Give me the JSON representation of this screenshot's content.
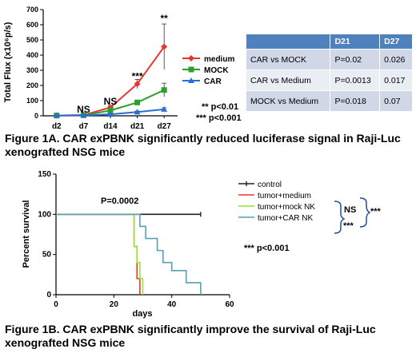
{
  "chart_data": [
    {
      "type": "line",
      "title": "",
      "ylabel": "Total Flux (x10⁶p/s)",
      "xlabel": "",
      "categories": [
        "d2",
        "d7",
        "d14",
        "d21",
        "d27"
      ],
      "ylim": [
        0,
        700
      ],
      "yticks": [
        0,
        100,
        200,
        300,
        400,
        500,
        600,
        700
      ],
      "grid": false,
      "legend_position": "right",
      "series": [
        {
          "name": "medium",
          "color": "#e8352e",
          "marker": "diamond",
          "values": [
            2,
            5,
            55,
            210,
            455
          ],
          "errors": [
            2,
            4,
            12,
            30,
            150
          ]
        },
        {
          "name": "MOCK",
          "color": "#2ca02c",
          "marker": "square",
          "values": [
            2,
            4,
            35,
            88,
            170
          ],
          "errors": [
            2,
            3,
            10,
            15,
            45
          ]
        },
        {
          "name": "CAR",
          "color": "#2a6fd6",
          "marker": "triangle",
          "values": [
            1,
            3,
            10,
            25,
            43
          ],
          "errors": [
            1,
            2,
            3,
            6,
            10
          ]
        }
      ],
      "annotations": [
        {
          "text": "NS",
          "x": "d7",
          "y": 20
        },
        {
          "text": "NS",
          "x": "d14",
          "y": 75
        },
        {
          "text": "***",
          "x": "d21",
          "y": 240
        },
        {
          "text": "**",
          "x": "d27",
          "y": 620
        }
      ],
      "notes": [
        "** p<0.01",
        "*** p<0.001"
      ]
    },
    {
      "type": "line",
      "title": "",
      "ylabel": "Percent survival",
      "xlabel": "days",
      "xlim": [
        0,
        60
      ],
      "xticks": [
        0,
        20,
        40,
        60
      ],
      "ylim": [
        0,
        150
      ],
      "yticks": [
        0,
        50,
        100,
        150
      ],
      "grid": false,
      "legend_position": "right",
      "series": [
        {
          "name": "control",
          "color": "#222222",
          "x": [
            0,
            50
          ],
          "y": [
            100,
            100
          ]
        },
        {
          "name": "tumor+medium",
          "color": "#e8352e",
          "x": [
            0,
            27,
            27,
            28,
            28,
            29,
            29
          ],
          "y": [
            100,
            100,
            60,
            60,
            20,
            20,
            0
          ]
        },
        {
          "name": "tumor+mock NK",
          "color": "#9be136",
          "x": [
            0,
            27,
            27,
            28,
            28,
            29,
            29,
            30,
            30
          ],
          "y": [
            100,
            100,
            60,
            60,
            40,
            40,
            20,
            20,
            0
          ]
        },
        {
          "name": "tumor+CAR NK",
          "color": "#5a9fb8",
          "x": [
            0,
            29,
            29,
            31,
            31,
            35,
            35,
            37,
            37,
            40,
            40,
            45,
            45,
            50,
            50
          ],
          "y": [
            100,
            100,
            85,
            85,
            70,
            70,
            55,
            55,
            40,
            40,
            30,
            30,
            15,
            15,
            0
          ]
        }
      ],
      "annotations": [
        {
          "text": "P=0.0002"
        }
      ],
      "comparisons": [
        {
          "label": "NS"
        },
        {
          "label": "***"
        },
        {
          "label": "***"
        }
      ],
      "notes": [
        "*** p<0.001"
      ]
    }
  ],
  "table": {
    "headers": [
      "",
      "D21",
      "D27"
    ],
    "rows": [
      [
        "CAR vs MOCK",
        "P=0.02",
        "0.026"
      ],
      [
        "CAR vs Medium",
        "P=0.0013",
        "0.017"
      ],
      [
        "MOCK vs Medium",
        "P=0.018",
        "0.07"
      ]
    ]
  },
  "captions": {
    "fig1a": "Figure 1A. CAR exPBNK significantly reduced luciferase signal in Raji-Luc xenografted NSG mice",
    "fig1b": "Figure 1B. CAR exPBNK significantly improve the survival of Raji-Luc xenografted NSG mice"
  },
  "colors": {
    "table_header": "#4f81bd",
    "table_row_dark": "#d0d8e8",
    "table_row_light": "#e9edf4"
  }
}
